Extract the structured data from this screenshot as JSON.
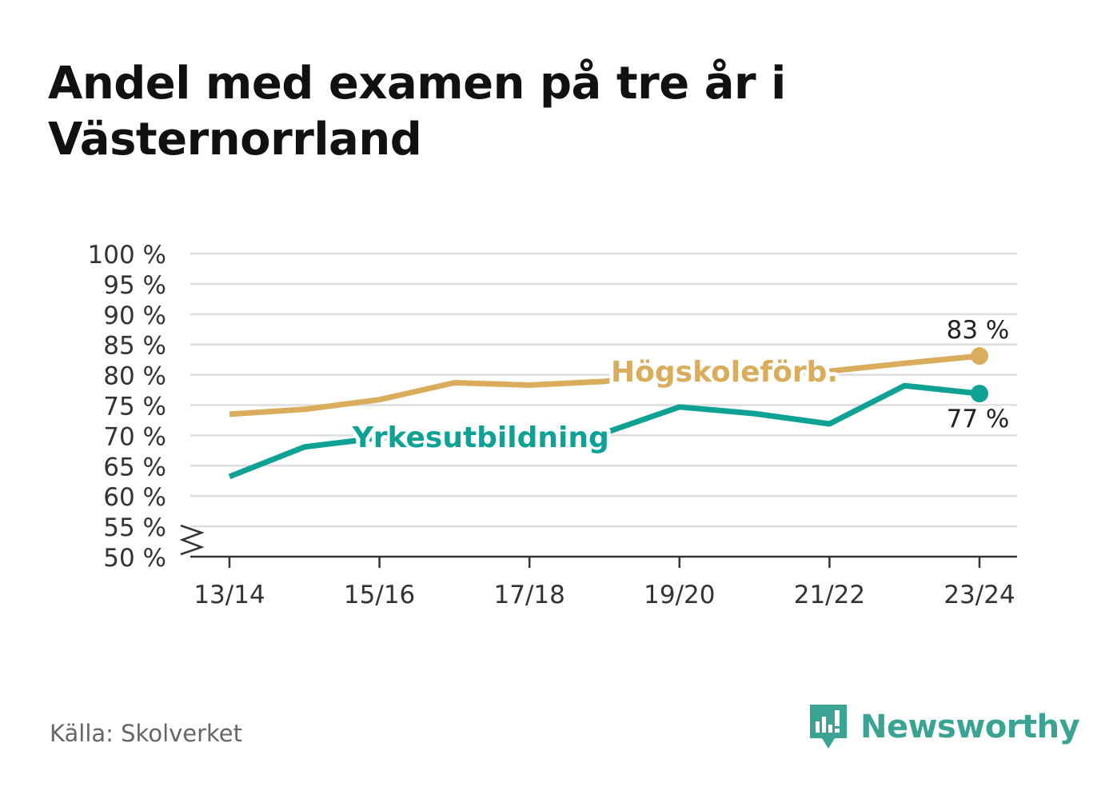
{
  "header": {
    "title": "Andel med examen på tre år i Västernorrland"
  },
  "footer": {
    "source": "Källa: Skolverket",
    "brand": "Newsworthy",
    "brand_color": "#3aa394"
  },
  "chart_data": {
    "type": "line",
    "title": "Andel med examen på tre år i Västernorrland",
    "xlabel": "",
    "ylabel": "",
    "x": [
      "13/14",
      "14/15",
      "15/16",
      "16/17",
      "17/18",
      "18/19",
      "19/20",
      "20/21",
      "21/22",
      "22/23",
      "23/24"
    ],
    "x_tick_labels": [
      "13/14",
      "15/16",
      "17/18",
      "19/20",
      "21/22",
      "23/24"
    ],
    "ylim": [
      50,
      100
    ],
    "y_ticks": [
      50,
      55,
      60,
      65,
      70,
      75,
      80,
      85,
      90,
      95,
      100
    ],
    "y_tick_labels": [
      "50 %",
      "55 %",
      "60 %",
      "65 %",
      "70 %",
      "75 %",
      "80 %",
      "85 %",
      "90 %",
      "95 %",
      "100 %"
    ],
    "y_axis_break": true,
    "grid": true,
    "series": [
      {
        "name": "Högskoleförb.",
        "color": "#d9ad5b",
        "values": [
          73.5,
          74.3,
          75.9,
          78.7,
          78.3,
          78.9,
          80.8,
          80.3,
          80.6,
          81.9,
          83.1
        ],
        "end_label": "83 %"
      },
      {
        "name": "Yrkesutbildning",
        "color": "#0ea295",
        "values": [
          63.2,
          68.1,
          69.6,
          70.3,
          69.9,
          70.4,
          74.7,
          73.6,
          71.9,
          78.2,
          76.9
        ],
        "end_label": "77 %"
      }
    ]
  }
}
